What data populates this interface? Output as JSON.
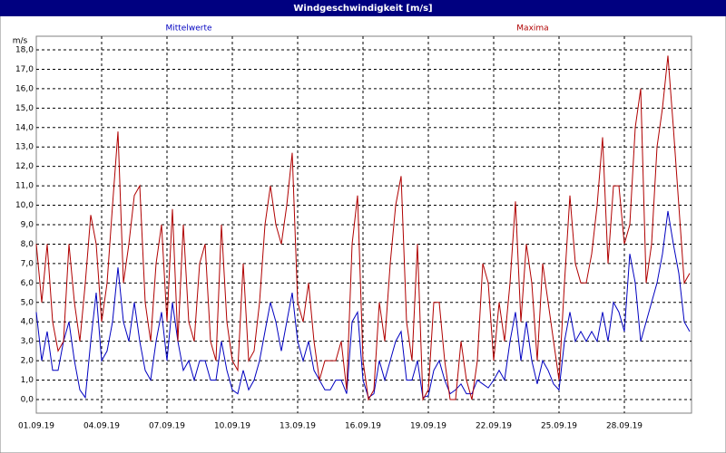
{
  "chart_data": {
    "type": "line",
    "title": "Windgeschwindigkeit [m/s]",
    "y_label": "m/s",
    "categories": [
      "01.09.19",
      null,
      null,
      null,
      null,
      null,
      null,
      null,
      null,
      null,
      null,
      null,
      "04.09.19",
      null,
      null,
      null,
      null,
      null,
      null,
      null,
      null,
      null,
      null,
      null,
      "07.09.19",
      null,
      null,
      null,
      null,
      null,
      null,
      null,
      null,
      null,
      null,
      null,
      "10.09.19",
      null,
      null,
      null,
      null,
      null,
      null,
      null,
      null,
      null,
      null,
      null,
      "13.09.19",
      null,
      null,
      null,
      null,
      null,
      null,
      null,
      null,
      null,
      null,
      null,
      "16.09.19",
      null,
      null,
      null,
      null,
      null,
      null,
      null,
      null,
      null,
      null,
      null,
      "19.09.19",
      null,
      null,
      null,
      null,
      null,
      null,
      null,
      null,
      null,
      null,
      null,
      "22.09.19",
      null,
      null,
      null,
      null,
      null,
      null,
      null,
      null,
      null,
      null,
      null,
      "25.09.19",
      null,
      null,
      null,
      null,
      null,
      null,
      null,
      null,
      null,
      null,
      null,
      "28.09.19",
      null,
      null,
      null,
      null,
      null,
      null,
      null,
      null,
      null,
      null,
      null,
      null
    ],
    "series": [
      {
        "name": "Mittelwerte",
        "color": "#0000c0",
        "values": [
          4.5,
          2,
          3.5,
          1.5,
          1.5,
          3,
          4,
          2,
          0.5,
          0.1,
          3,
          5.5,
          2,
          2.5,
          4,
          6.8,
          4,
          3,
          5,
          3,
          1.5,
          1,
          3,
          4.5,
          2,
          5,
          3,
          1.5,
          2,
          1,
          2,
          2,
          1,
          1,
          3,
          1.5,
          0.5,
          0.3,
          1.5,
          0.5,
          1,
          2,
          3.5,
          5,
          4,
          2.5,
          4,
          5.5,
          3,
          2,
          3,
          1.5,
          1,
          0.5,
          0.5,
          1,
          1,
          0.3,
          4,
          4.5,
          1,
          0.1,
          0.3,
          2,
          1,
          2,
          3,
          3.5,
          1,
          1,
          2,
          0.1,
          0.2,
          1.5,
          2,
          1,
          0.3,
          0.5,
          0.8,
          0.3,
          0.3,
          1,
          0.8,
          0.6,
          1,
          1.5,
          1,
          3,
          4.5,
          2,
          4,
          2,
          0.8,
          2,
          1.5,
          0.8,
          0.5,
          3,
          4.5,
          3,
          3.5,
          3,
          3.5,
          3,
          4.5,
          3,
          5,
          4.5,
          3.5,
          7.5,
          6,
          3,
          4,
          5,
          6,
          7.5,
          9.7,
          8,
          6.5,
          4,
          3.5
        ]
      },
      {
        "name": "Maxima",
        "color": "#b00000",
        "values": [
          8,
          5,
          8,
          4,
          2.5,
          3,
          8,
          5,
          3,
          6,
          9.5,
          8,
          4,
          6,
          10,
          13.8,
          6,
          8,
          10.5,
          11,
          5,
          3,
          7,
          9,
          4,
          9.8,
          3,
          9,
          4,
          3,
          7,
          8,
          3,
          2,
          9,
          4,
          2,
          1.5,
          7,
          2,
          2.5,
          5,
          9,
          11,
          9,
          8,
          10,
          12.7,
          5,
          4,
          6,
          3,
          1,
          2,
          2,
          2,
          3,
          0.5,
          8,
          10.5,
          2,
          0,
          0.5,
          5,
          3,
          7,
          10,
          11.5,
          4,
          2,
          8,
          0,
          0.5,
          5,
          5,
          2,
          0,
          0,
          3,
          1,
          0,
          2,
          7,
          6,
          2,
          5,
          3,
          6,
          10.2,
          4,
          8,
          6,
          2,
          7,
          5,
          3,
          1,
          6,
          10.5,
          7,
          6,
          6,
          7.5,
          10,
          13.5,
          7,
          11,
          11,
          8,
          9,
          14,
          16,
          6,
          8,
          13,
          15,
          17.7,
          14,
          10,
          6,
          6.5
        ]
      }
    ],
    "ylim": [
      -0.7,
      18.7
    ],
    "yticks": [
      {
        "value": 0,
        "label": "0,0"
      },
      {
        "value": 1,
        "label": "1,0"
      },
      {
        "value": 2,
        "label": "2,0"
      },
      {
        "value": 3,
        "label": "3,0"
      },
      {
        "value": 4,
        "label": "4,0"
      },
      {
        "value": 5,
        "label": "5,0"
      },
      {
        "value": 6,
        "label": "6,0"
      },
      {
        "value": 7,
        "label": "7,0"
      },
      {
        "value": 8,
        "label": "8,0"
      },
      {
        "value": 9,
        "label": "9,0"
      },
      {
        "value": 10,
        "label": "10,0"
      },
      {
        "value": 11,
        "label": "11,0"
      },
      {
        "value": 12,
        "label": "12,0"
      },
      {
        "value": 13,
        "label": "13,0"
      },
      {
        "value": 14,
        "label": "14,0"
      },
      {
        "value": 15,
        "label": "15,0"
      },
      {
        "value": 16,
        "label": "16,0"
      },
      {
        "value": 17,
        "label": "17,0"
      },
      {
        "value": 18,
        "label": "18,0"
      }
    ],
    "grid": true
  }
}
